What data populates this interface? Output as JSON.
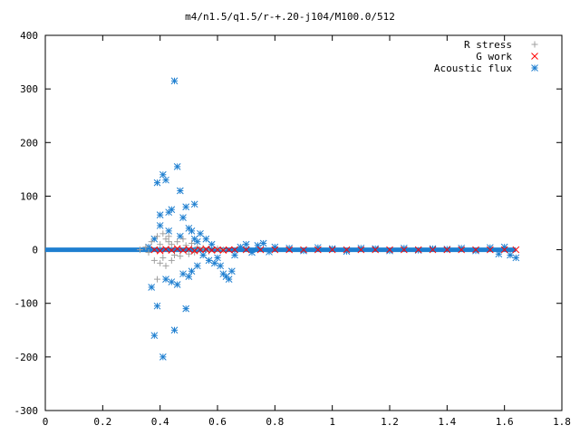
{
  "chart_data": {
    "type": "scatter",
    "title": "m4/n1.5/q1.5/r-+.20-j104/M100.0/512",
    "xlabel": "",
    "ylabel": "",
    "xlim": [
      0,
      1.8
    ],
    "ylim": [
      -300,
      400
    ],
    "xticks": [
      "0",
      "0.2",
      "0.4",
      "0.6",
      "0.8",
      "1",
      "1.2",
      "1.4",
      "1.6",
      "1.8"
    ],
    "yticks": [
      "400",
      "300",
      "200",
      "100",
      "0",
      "-100",
      "-200",
      "-300"
    ],
    "legend_position": "top-right",
    "grid": false,
    "series": [
      {
        "name": "R stress",
        "marker": "plus",
        "color": "#a0a0a0",
        "x": [
          0.33,
          0.35,
          0.36,
          0.37,
          0.38,
          0.39,
          0.39,
          0.4,
          0.4,
          0.41,
          0.41,
          0.42,
          0.42,
          0.43,
          0.43,
          0.44,
          0.44,
          0.45,
          0.46,
          0.47,
          0.48,
          0.49,
          0.5,
          0.51,
          0.52,
          0.53,
          0.55,
          0.57,
          0.6,
          0.62
        ],
        "y": [
          0,
          5,
          -5,
          15,
          -20,
          25,
          -55,
          10,
          -25,
          30,
          -15,
          20,
          -30,
          15,
          25,
          -20,
          10,
          -10,
          15,
          -12,
          20,
          8,
          -8,
          12,
          -5,
          5,
          3,
          -3,
          2,
          0
        ]
      },
      {
        "name": "G work",
        "marker": "cross",
        "color": "#ff0000",
        "x": [
          0.38,
          0.4,
          0.42,
          0.44,
          0.46,
          0.48,
          0.5,
          0.52,
          0.54,
          0.56,
          0.58,
          0.6,
          0.62,
          0.64,
          0.66,
          0.7,
          0.75,
          0.8,
          0.85,
          0.9,
          0.95,
          1.0,
          1.05,
          1.1,
          1.15,
          1.2,
          1.25,
          1.3,
          1.35,
          1.4,
          1.45,
          1.5,
          1.55,
          1.6,
          1.64
        ],
        "y": [
          0,
          -2,
          1,
          -1,
          2,
          -1,
          1,
          -2,
          0,
          1,
          -1,
          0,
          -1,
          0,
          0,
          0,
          0,
          0,
          0,
          0,
          0,
          0,
          0,
          0,
          0,
          0,
          0,
          0,
          0,
          0,
          0,
          0,
          0,
          0,
          0
        ]
      },
      {
        "name": "Acoustic flux",
        "marker": "star",
        "color": "#1f7fd0",
        "x": [
          0.36,
          0.37,
          0.38,
          0.38,
          0.39,
          0.39,
          0.4,
          0.4,
          0.41,
          0.41,
          0.42,
          0.42,
          0.43,
          0.43,
          0.44,
          0.44,
          0.45,
          0.45,
          0.46,
          0.46,
          0.47,
          0.47,
          0.48,
          0.48,
          0.49,
          0.49,
          0.5,
          0.5,
          0.51,
          0.51,
          0.52,
          0.52,
          0.53,
          0.53,
          0.54,
          0.55,
          0.56,
          0.57,
          0.58,
          0.59,
          0.6,
          0.61,
          0.62,
          0.63,
          0.64,
          0.65,
          0.66,
          0.68,
          0.7,
          0.72,
          0.74,
          0.76,
          0.78,
          0.8,
          0.85,
          0.9,
          0.95,
          1.0,
          1.05,
          1.1,
          1.15,
          1.2,
          1.25,
          1.3,
          1.35,
          1.4,
          1.45,
          1.5,
          1.55,
          1.58,
          1.6,
          1.62,
          1.64
        ],
        "y": [
          5,
          -70,
          -160,
          20,
          -105,
          125,
          45,
          65,
          -200,
          140,
          130,
          -55,
          35,
          70,
          -60,
          75,
          315,
          -150,
          155,
          -65,
          25,
          110,
          -45,
          60,
          -110,
          80,
          40,
          -50,
          35,
          -40,
          20,
          85,
          -30,
          15,
          30,
          -10,
          20,
          -20,
          10,
          -25,
          -15,
          -30,
          -45,
          -50,
          -55,
          -40,
          -10,
          5,
          10,
          -5,
          8,
          12,
          -4,
          5,
          3,
          -2,
          4,
          2,
          -3,
          3,
          2,
          -2,
          3,
          -1,
          2,
          1,
          3,
          -2,
          4,
          -8,
          5,
          -10,
          -15
        ]
      }
    ]
  }
}
